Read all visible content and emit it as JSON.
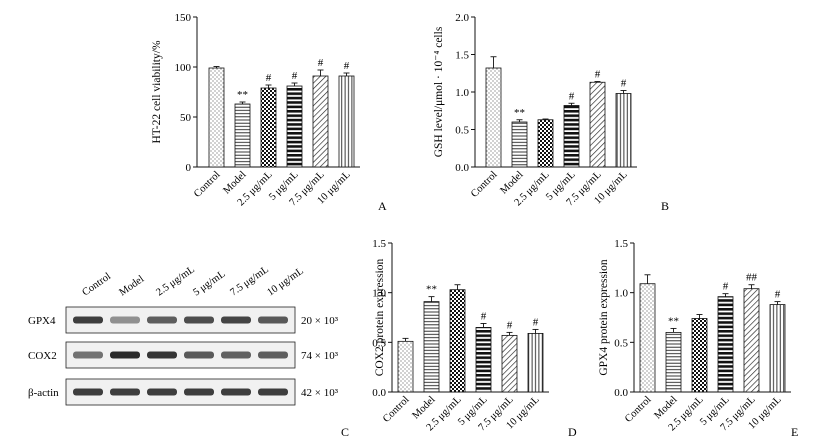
{
  "chart_data": [
    {
      "type": "bar",
      "panel": "A",
      "ylabel": "HT-22 cell viability/%",
      "ylim": [
        0,
        150
      ],
      "yticks": [
        0,
        50,
        100,
        150
      ],
      "categories": [
        "Control",
        "Model",
        "2.5 μg/mL",
        "5 μg/mL",
        "7.5 μg/mL",
        "10 μg/mL"
      ],
      "values": [
        99,
        63,
        79,
        81,
        91,
        91
      ],
      "errors": [
        1.5,
        2,
        3,
        3,
        6,
        3
      ],
      "marks": [
        "",
        "**",
        "#",
        "#",
        "#",
        "#"
      ]
    },
    {
      "type": "bar",
      "panel": "B",
      "ylabel": "GSH level/μmol · 10⁻⁴ cells",
      "ylim": [
        0,
        2.0
      ],
      "yticks": [
        0.0,
        0.5,
        1.0,
        1.5,
        2.0
      ],
      "categories": [
        "Control",
        "Model",
        "2.5 μg/mL",
        "5 μg/mL",
        "7.5 μg/mL",
        "10 μg/mL"
      ],
      "values": [
        1.32,
        0.6,
        0.63,
        0.82,
        1.13,
        0.98
      ],
      "errors": [
        0.15,
        0.03,
        0.01,
        0.03,
        0.01,
        0.04
      ],
      "marks": [
        "",
        "**",
        "",
        "#",
        "#",
        "#"
      ]
    },
    {
      "type": "bar",
      "panel": "D",
      "ylabel": "COX2 protein expression",
      "ylim": [
        0,
        1.5
      ],
      "yticks": [
        0.0,
        0.5,
        1.0,
        1.5
      ],
      "categories": [
        "Control",
        "Model",
        "2.5 μg/mL",
        "5 μg/mL",
        "7.5 μg/mL",
        "10 μg/mL"
      ],
      "values": [
        0.51,
        0.91,
        1.03,
        0.65,
        0.57,
        0.59
      ],
      "errors": [
        0.03,
        0.05,
        0.05,
        0.04,
        0.03,
        0.04
      ],
      "marks": [
        "",
        "**",
        "",
        "#",
        "#",
        "#"
      ]
    },
    {
      "type": "bar",
      "panel": "E",
      "ylabel": "GPX4 protein expression",
      "ylim": [
        0,
        1.5
      ],
      "yticks": [
        0.0,
        0.5,
        1.0,
        1.5
      ],
      "categories": [
        "Control",
        "Model",
        "2.5 μg/mL",
        "5 μg/mL",
        "7.5 μg/mL",
        "10 μg/mL"
      ],
      "values": [
        1.09,
        0.6,
        0.74,
        0.96,
        1.04,
        0.88
      ],
      "errors": [
        0.09,
        0.04,
        0.04,
        0.03,
        0.04,
        0.03
      ],
      "marks": [
        "",
        "**",
        "",
        "#",
        "##",
        "#"
      ]
    }
  ],
  "blot": {
    "panel": "C",
    "lanes": [
      "Control",
      "Model",
      "2.5 μg/mL",
      "5 μg/mL",
      "7.5 μg/mL",
      "10 μg/mL"
    ],
    "rows": [
      {
        "protein": "GPX4",
        "mw": "20 × 10³",
        "intensity": [
          0.85,
          0.45,
          0.7,
          0.78,
          0.82,
          0.72
        ]
      },
      {
        "protein": "COX2",
        "mw": "74 × 10³",
        "intensity": [
          0.6,
          0.95,
          0.9,
          0.72,
          0.68,
          0.7
        ]
      },
      {
        "protein": "β-actin",
        "mw": "42 × 10³",
        "intensity": [
          0.85,
          0.85,
          0.85,
          0.85,
          0.85,
          0.85
        ]
      }
    ]
  },
  "panel_letters": {
    "A": "A",
    "B": "B",
    "C": "C",
    "D": "D",
    "E": "E"
  }
}
